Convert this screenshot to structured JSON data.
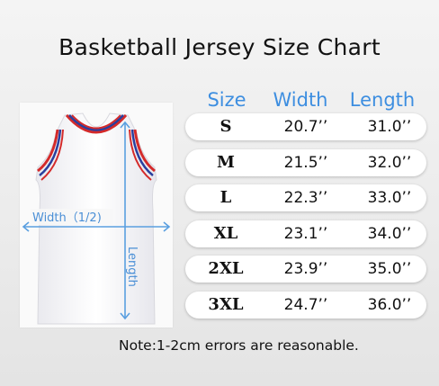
{
  "title": "Basketball Jersey Size Chart",
  "headers": {
    "size": "Size",
    "width": "Width",
    "length": "Length"
  },
  "rows": [
    {
      "size": "S",
      "width": "20.7’’",
      "length": "31.0’’"
    },
    {
      "size": "M",
      "width": "21.5’’",
      "length": "32.0’’"
    },
    {
      "size": "L",
      "width": "22.3’’",
      "length": "33.0’’"
    },
    {
      "size": "XL",
      "width": "23.1’’",
      "length": "34.0’’"
    },
    {
      "size": "2XL",
      "width": "23.9’’",
      "length": "35.0’’"
    },
    {
      "size": "3XL",
      "width": "24.7’’",
      "length": "36.0’’"
    }
  ],
  "diagram": {
    "width_label": "Width（1/2)",
    "length_label": "Length"
  },
  "note": "Note:1-2cm errors are reasonable.",
  "colors": {
    "accent": "#3d8ee0",
    "measure_line": "#5a9fe0",
    "trim_red": "#d42a2a",
    "trim_blue": "#2a3f9e"
  }
}
